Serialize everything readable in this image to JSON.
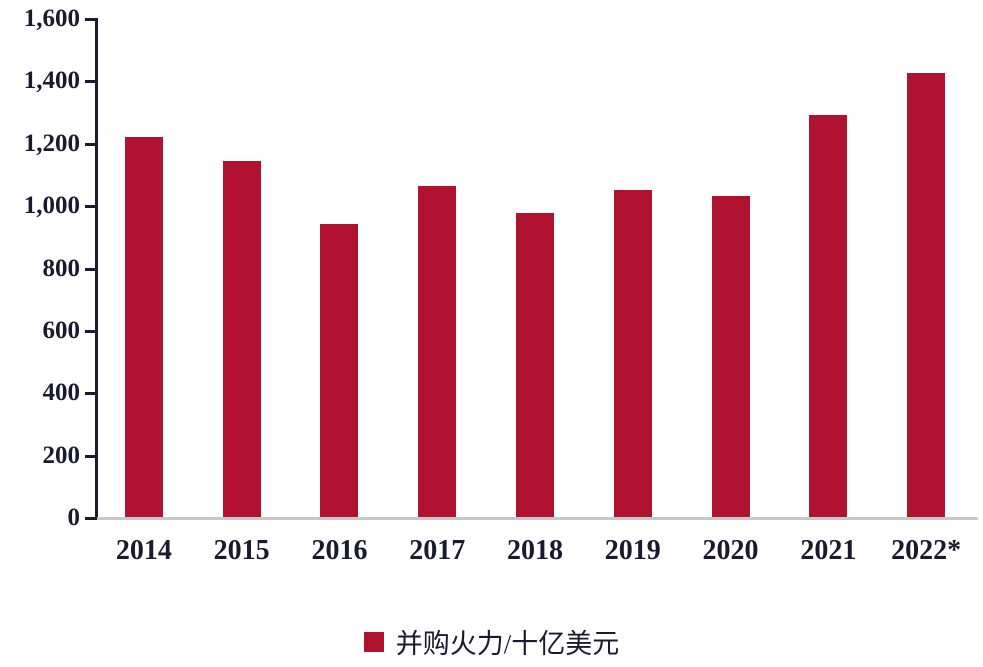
{
  "chart_data": {
    "type": "bar",
    "categories": [
      "2014",
      "2015",
      "2016",
      "2017",
      "2018",
      "2019",
      "2020",
      "2021",
      "2022*"
    ],
    "values": [
      1220,
      1140,
      940,
      1060,
      975,
      1050,
      1030,
      1290,
      1425
    ],
    "series_name": "并购火力/十亿美元",
    "title": "",
    "xlabel": "",
    "ylabel": "",
    "ylim": [
      0,
      1600
    ],
    "ytick_step": 200,
    "ytick_labels": [
      "0",
      "200",
      "400",
      "600",
      "800",
      "1,000",
      "1,200",
      "1,400",
      "1,600"
    ],
    "bar_color": "#B01230",
    "axis_color": "#1A1A2E",
    "text_color": "#1A1A2E",
    "baseline_color": "#C8C8C8",
    "grid": false,
    "legend_position": "bottom"
  },
  "legend": {
    "label": "并购火力/十亿美元",
    "swatch_color": "#B01230"
  }
}
